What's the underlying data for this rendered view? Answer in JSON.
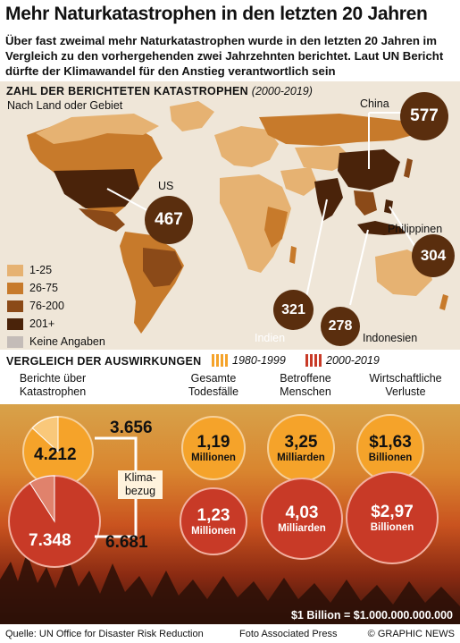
{
  "title": "Mehr Naturkatastrophen in den letzten 20 Jahren",
  "intro": "Über fast zweimal mehr Naturkatastrophen wurde in den letzten 20 Jahren im Vergleich zu den vorhergehenden zwei Jahrzehnten berichtet. Laut UN Bericht dürfte der Klimawandel für den Anstieg verantwortlich sein",
  "map": {
    "heading": "Zahl der berichteten Katastrophen",
    "period": "(2000-2019)",
    "subheading": "Nach Land oder Gebiet",
    "legend": [
      {
        "label": "1-25",
        "color": "#e6b272"
      },
      {
        "label": "26-75",
        "color": "#c77a2b"
      },
      {
        "label": "76-200",
        "color": "#8b4a18"
      },
      {
        "label": "201+",
        "color": "#4a230a"
      },
      {
        "label": "Keine Angaben",
        "color": "#c4bcb8"
      }
    ],
    "callouts": [
      {
        "country": "China",
        "value": "577"
      },
      {
        "country": "US",
        "value": "467"
      },
      {
        "country": "Philippinen",
        "value": "304"
      },
      {
        "country": "Indien",
        "value": "321"
      },
      {
        "country": "Indonesien",
        "value": "278"
      }
    ]
  },
  "comparison": {
    "heading": "Vergleich der Auswirkungen",
    "period_old": "1980-1999",
    "period_new": "2000-2019",
    "color_old": "#f5a32a",
    "color_new": "#c83a27",
    "columns": [
      {
        "label": "Berichte über Katastrophen"
      },
      {
        "label": "Gesamte Todesfälle"
      },
      {
        "label": "Betroffene Menschen"
      },
      {
        "label": "Wirtschaftliche Verluste"
      }
    ],
    "reports": {
      "old_total": "4.212",
      "old_climate": "3.656",
      "new_total": "7.348",
      "new_climate": "6.681",
      "climate_label": "Klima-bezug"
    },
    "deaths": {
      "old_value": "1,19",
      "old_unit": "Millionen",
      "new_value": "1,23",
      "new_unit": "Millionen"
    },
    "affected": {
      "old_value": "3,25",
      "old_unit": "Milliarden",
      "new_value": "4,03",
      "new_unit": "Milliarden"
    },
    "losses": {
      "old_value": "$1,63",
      "old_unit": "Billionen",
      "new_value": "$2,97",
      "new_unit": "Billionen"
    },
    "note": "$1 Billion = $1.000.000.000.000"
  },
  "chart_data": {
    "type": "pie",
    "title": "Vergleich der Auswirkungen",
    "series": [
      {
        "name": "1980-1999",
        "values": [
          4212,
          1.19,
          3.25,
          1.63
        ],
        "climate_related_reports": 3656
      },
      {
        "name": "2000-2019",
        "values": [
          7348,
          1.23,
          4.03,
          2.97
        ],
        "climate_related_reports": 6681
      }
    ],
    "categories": [
      "Berichte über Katastrophen",
      "Gesamte Todesfälle",
      "Betroffene Menschen",
      "Wirtschaftliche Verluste"
    ],
    "map_values": {
      "China": 577,
      "US": 467,
      "Philippinen": 304,
      "Indien": 321,
      "Indonesien": 278
    }
  },
  "footer": {
    "source": "Quelle: UN Office for Disaster Risk Reduction",
    "photo": "Foto Associated Press",
    "brand": "© GRAPHIC NEWS"
  }
}
